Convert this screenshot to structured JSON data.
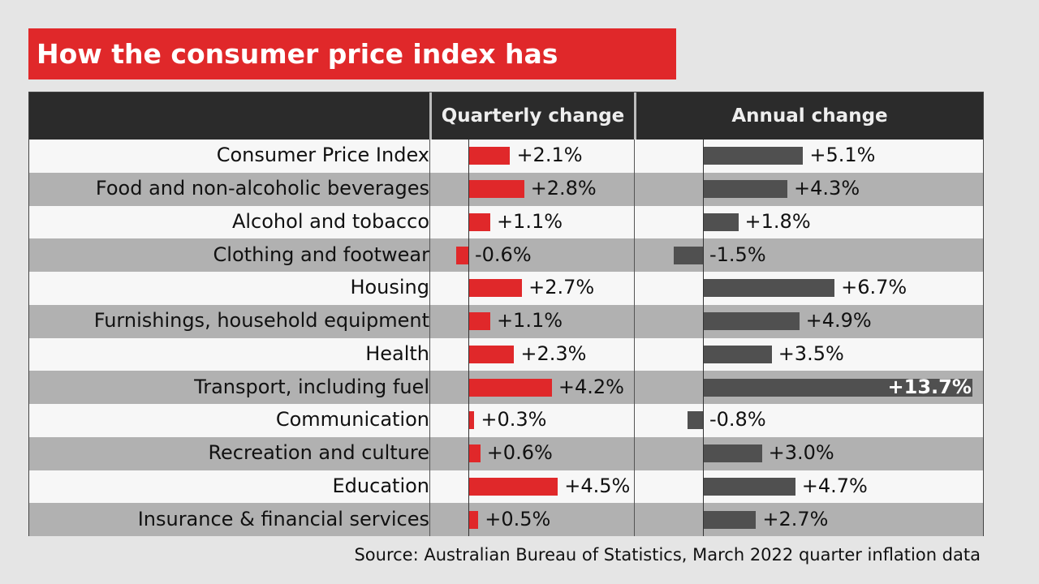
{
  "title": "How the consumer price index has changed",
  "source": "Source: Australian Bureau of Statistics, March 2022 quarter inflation data",
  "colors": {
    "quarterly_bar": "#e0282a",
    "annual_bar": "#505050",
    "header": "#2b2b2b",
    "title_bg": "#e0282a"
  },
  "chart_data": {
    "type": "bar",
    "orientation": "horizontal",
    "title": "How the consumer price index has changed",
    "categories": [
      "Consumer Price Index",
      "Food and non-alcoholic beverages",
      "Alcohol and tobacco",
      "Clothing and footwear",
      "Housing",
      "Furnishings, household equipment",
      "Health",
      "Transport, including fuel",
      "Communication",
      "Recreation and culture",
      "Education",
      "Insurance & financial services"
    ],
    "series": [
      {
        "name": "Quarterly change",
        "values": [
          2.1,
          2.8,
          1.1,
          -0.6,
          2.7,
          1.1,
          2.3,
          4.2,
          0.3,
          0.6,
          4.5,
          0.5
        ],
        "labels": [
          "+2.1%",
          "+2.8%",
          "+1.1%",
          "-0.6%",
          "+2.7%",
          "+1.1%",
          "+2.3%",
          "+4.2%",
          "+0.3%",
          "+0.6%",
          "+4.5%",
          "+0.5%"
        ]
      },
      {
        "name": "Annual change",
        "values": [
          5.1,
          4.3,
          1.8,
          -1.5,
          6.7,
          4.9,
          3.5,
          13.7,
          -0.8,
          3.0,
          4.7,
          2.7
        ],
        "labels": [
          "+5.1%",
          "+4.3%",
          "+1.8%",
          "-1.5%",
          "+6.7%",
          "+4.9%",
          "+3.5%",
          "+13.7%",
          "-0.8%",
          "+3.0%",
          "+4.7%",
          "+2.7%"
        ]
      }
    ],
    "grid": false,
    "legend": "none"
  }
}
